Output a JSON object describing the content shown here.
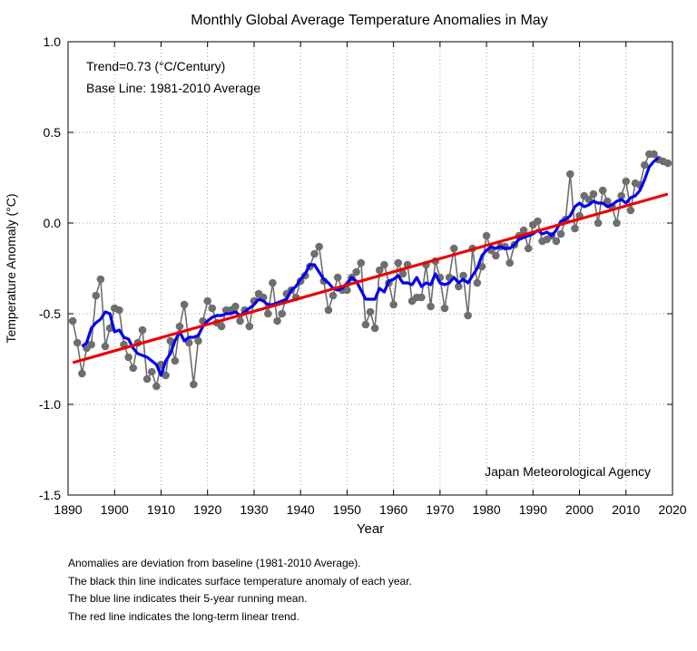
{
  "chart_data": {
    "type": "line",
    "title": "Monthly Global Average Temperature Anomalies in May",
    "xlabel": "Year",
    "ylabel": "Temperature Anomaly (°C)",
    "xlim": [
      1890,
      2020
    ],
    "ylim": [
      -1.5,
      1.0
    ],
    "xticks": [
      1890,
      1900,
      1910,
      1920,
      1930,
      1940,
      1950,
      1960,
      1970,
      1980,
      1990,
      2000,
      2010,
      2020
    ],
    "yticks": [
      -1.5,
      -1.0,
      -0.5,
      0.0,
      0.5,
      1.0
    ],
    "ytick_labels": [
      "-1.5",
      "-1.0",
      "-0.5",
      "0.0",
      "0.5",
      "1.0"
    ],
    "grid": true,
    "annotations": {
      "trend": "Trend=0.73 (°C/Century)",
      "baseline": "Base Line: 1981-2010 Average",
      "source": "Japan Meteorological Agency"
    },
    "colors": {
      "annual": "#6e6e6e",
      "running_mean": "#0000ee",
      "trend": "#ee0000"
    },
    "x": [
      1891,
      1892,
      1893,
      1894,
      1895,
      1896,
      1897,
      1898,
      1899,
      1900,
      1901,
      1902,
      1903,
      1904,
      1905,
      1906,
      1907,
      1908,
      1909,
      1910,
      1911,
      1912,
      1913,
      1914,
      1915,
      1916,
      1917,
      1918,
      1919,
      1920,
      1921,
      1922,
      1923,
      1924,
      1925,
      1926,
      1927,
      1928,
      1929,
      1930,
      1931,
      1932,
      1933,
      1934,
      1935,
      1936,
      1937,
      1938,
      1939,
      1940,
      1941,
      1942,
      1943,
      1944,
      1945,
      1946,
      1947,
      1948,
      1949,
      1950,
      1951,
      1952,
      1953,
      1954,
      1955,
      1956,
      1957,
      1958,
      1959,
      1960,
      1961,
      1962,
      1963,
      1964,
      1965,
      1966,
      1967,
      1968,
      1969,
      1970,
      1971,
      1972,
      1973,
      1974,
      1975,
      1976,
      1977,
      1978,
      1979,
      1980,
      1981,
      1982,
      1983,
      1984,
      1985,
      1986,
      1987,
      1988,
      1989,
      1990,
      1991,
      1992,
      1993,
      1994,
      1995,
      1996,
      1997,
      1998,
      1999,
      2000,
      2001,
      2002,
      2003,
      2004,
      2005,
      2006,
      2007,
      2008,
      2009,
      2010,
      2011,
      2012,
      2013,
      2014,
      2015,
      2016,
      2017,
      2018,
      2019
    ],
    "series": [
      {
        "type": "line-markers",
        "values": [
          -0.54,
          -0.66,
          -0.83,
          -0.69,
          -0.67,
          -0.4,
          -0.31,
          -0.68,
          -0.58,
          -0.47,
          -0.48,
          -0.67,
          -0.74,
          -0.8,
          -0.66,
          -0.59,
          -0.86,
          -0.82,
          -0.9,
          -0.78,
          -0.84,
          -0.65,
          -0.76,
          -0.57,
          -0.45,
          -0.66,
          -0.89,
          -0.65,
          -0.54,
          -0.43,
          -0.47,
          -0.55,
          -0.57,
          -0.48,
          -0.48,
          -0.46,
          -0.54,
          -0.48,
          -0.57,
          -0.43,
          -0.39,
          -0.41,
          -0.5,
          -0.33,
          -0.54,
          -0.5,
          -0.39,
          -0.37,
          -0.41,
          -0.32,
          -0.29,
          -0.24,
          -0.17,
          -0.13,
          -0.32,
          -0.48,
          -0.4,
          -0.3,
          -0.37,
          -0.37,
          -0.3,
          -0.27,
          -0.22,
          -0.56,
          -0.49,
          -0.58,
          -0.26,
          -0.23,
          -0.33,
          -0.45,
          -0.22,
          -0.28,
          -0.23,
          -0.43,
          -0.41,
          -0.41,
          -0.23,
          -0.46,
          -0.21,
          -0.3,
          -0.47,
          -0.3,
          -0.14,
          -0.35,
          -0.29,
          -0.51,
          -0.14,
          -0.33,
          -0.24,
          -0.07,
          -0.15,
          -0.18,
          -0.13,
          -0.13,
          -0.22,
          -0.12,
          -0.07,
          -0.04,
          -0.14,
          -0.01,
          0.01,
          -0.1,
          -0.09,
          -0.07,
          -0.1,
          -0.06,
          0.02,
          0.27,
          -0.03,
          0.04,
          0.15,
          0.13,
          0.16,
          0.0,
          0.18,
          0.12,
          0.09,
          0.0,
          0.15,
          0.23,
          0.07,
          0.22,
          0.21,
          0.32,
          0.38,
          0.38,
          0.35,
          0.34,
          0.33
        ]
      },
      {
        "type": "line",
        "x": [
          1893,
          1894,
          1895,
          1896,
          1897,
          1898,
          1899,
          1900,
          1901,
          1902,
          1903,
          1904,
          1905,
          1906,
          1907,
          1908,
          1909,
          1910,
          1911,
          1912,
          1913,
          1914,
          1915,
          1916,
          1917,
          1918,
          1919,
          1920,
          1921,
          1922,
          1923,
          1924,
          1925,
          1926,
          1927,
          1928,
          1929,
          1930,
          1931,
          1932,
          1933,
          1934,
          1935,
          1936,
          1937,
          1938,
          1939,
          1940,
          1941,
          1942,
          1943,
          1944,
          1945,
          1946,
          1947,
          1948,
          1949,
          1950,
          1951,
          1952,
          1953,
          1954,
          1955,
          1956,
          1957,
          1958,
          1959,
          1960,
          1961,
          1962,
          1963,
          1964,
          1965,
          1966,
          1967,
          1968,
          1969,
          1970,
          1971,
          1972,
          1973,
          1974,
          1975,
          1976,
          1977,
          1978,
          1979,
          1980,
          1981,
          1982,
          1983,
          1984,
          1985,
          1986,
          1987,
          1988,
          1989,
          1990,
          1991,
          1992,
          1993,
          1994,
          1995,
          1996,
          1997,
          1998,
          1999,
          2000,
          2001,
          2002,
          2003,
          2004,
          2005,
          2006,
          2007,
          2008,
          2009,
          2010,
          2011,
          2012,
          2013,
          2014,
          2015,
          2016,
          2017
        ],
        "values": [
          -0.68,
          -0.66,
          -0.58,
          -0.55,
          -0.53,
          -0.49,
          -0.5,
          -0.6,
          -0.59,
          -0.63,
          -0.64,
          -0.69,
          -0.72,
          -0.73,
          -0.74,
          -0.76,
          -0.78,
          -0.84,
          -0.76,
          -0.72,
          -0.65,
          -0.6,
          -0.65,
          -0.63,
          -0.63,
          -0.62,
          -0.57,
          -0.54,
          -0.52,
          -0.51,
          -0.51,
          -0.5,
          -0.5,
          -0.49,
          -0.51,
          -0.49,
          -0.47,
          -0.45,
          -0.42,
          -0.43,
          -0.45,
          -0.45,
          -0.44,
          -0.43,
          -0.42,
          -0.37,
          -0.35,
          -0.31,
          -0.28,
          -0.23,
          -0.23,
          -0.27,
          -0.31,
          -0.33,
          -0.36,
          -0.37,
          -0.36,
          -0.33,
          -0.3,
          -0.32,
          -0.37,
          -0.42,
          -0.42,
          -0.42,
          -0.36,
          -0.38,
          -0.32,
          -0.31,
          -0.29,
          -0.33,
          -0.33,
          -0.34,
          -0.3,
          -0.35,
          -0.33,
          -0.34,
          -0.28,
          -0.33,
          -0.34,
          -0.33,
          -0.3,
          -0.33,
          -0.31,
          -0.33,
          -0.29,
          -0.25,
          -0.18,
          -0.15,
          -0.13,
          -0.14,
          -0.13,
          -0.14,
          -0.14,
          -0.12,
          -0.09,
          -0.08,
          -0.07,
          -0.06,
          -0.04,
          -0.06,
          -0.05,
          -0.07,
          -0.04,
          0.01,
          0.02,
          0.04,
          0.09,
          0.11,
          0.09,
          0.1,
          0.12,
          0.11,
          0.11,
          0.09,
          0.1,
          0.12,
          0.13,
          0.11,
          0.14,
          0.15,
          0.18,
          0.24,
          0.31,
          0.34,
          0.36
        ]
      },
      {
        "type": "line",
        "x": [
          1891,
          2019
        ],
        "values": [
          -0.77,
          0.16
        ]
      }
    ]
  },
  "notes": [
    "Anomalies are deviation from baseline (1981-2010 Average).",
    "The black thin line indicates surface temperature anomaly of each year.",
    "The blue line indicates their 5-year running mean.",
    "The red line indicates the long-term linear trend."
  ]
}
